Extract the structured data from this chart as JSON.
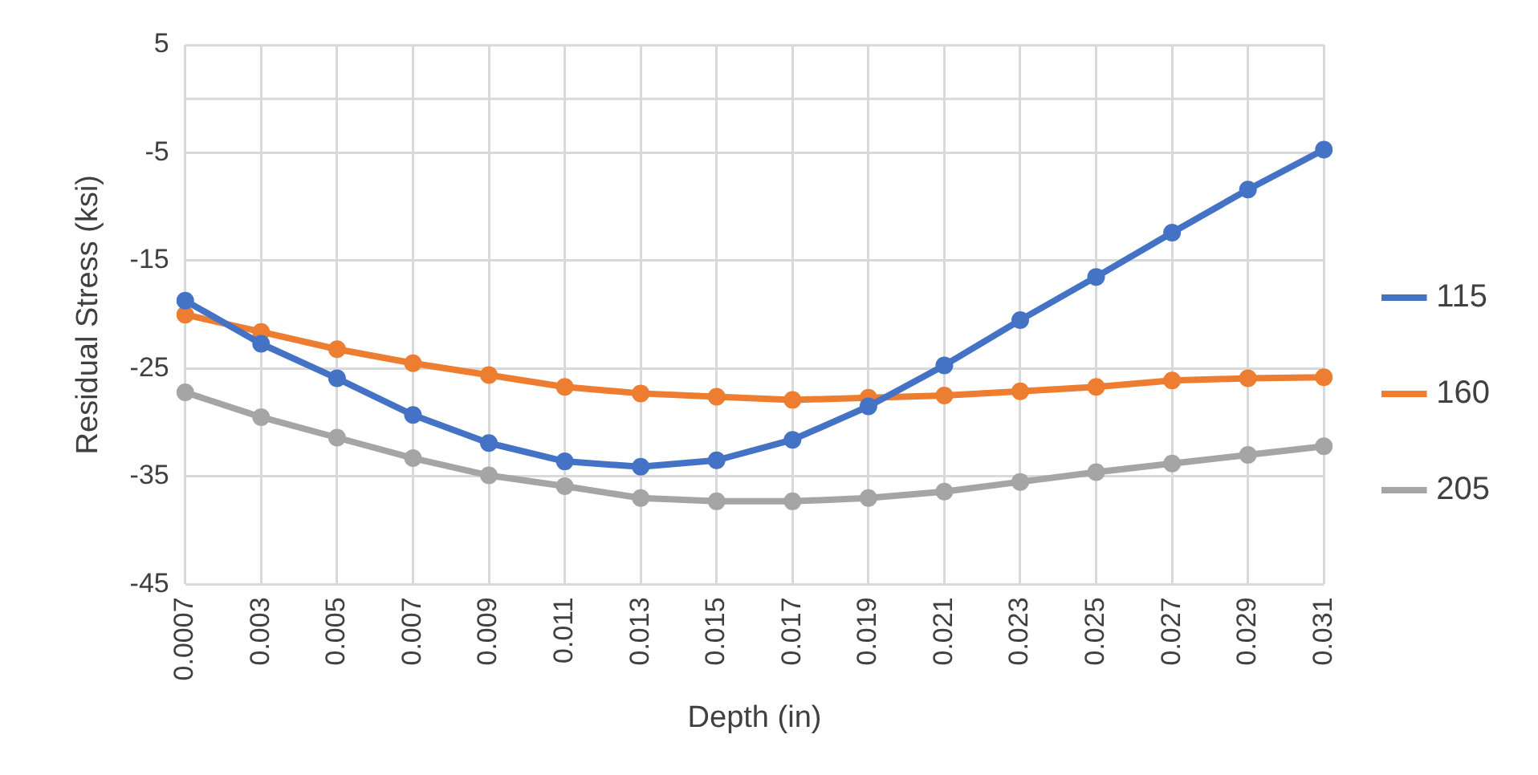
{
  "chart_data": {
    "type": "line",
    "xlabel": "Depth (in)",
    "ylabel": "Residual Stress (ksi)",
    "categories": [
      "0.0007",
      "0.003",
      "0.005",
      "0.007",
      "0.009",
      "0.011",
      "0.013",
      "0.015",
      "0.017",
      "0.019",
      "0.021",
      "0.023",
      "0.025",
      "0.027",
      "0.029",
      "0.031"
    ],
    "series": [
      {
        "name": "115",
        "color": "#4472c4",
        "values": [
          -18.7,
          -22.7,
          -25.9,
          -29.3,
          -31.9,
          -33.6,
          -34.1,
          -33.5,
          -31.6,
          -28.5,
          -24.7,
          -20.5,
          -16.5,
          -12.4,
          -8.4,
          -4.7
        ]
      },
      {
        "name": "160",
        "color": "#ed7d31",
        "values": [
          -20.0,
          -21.6,
          -23.2,
          -24.5,
          -25.6,
          -26.7,
          -27.3,
          -27.6,
          -27.9,
          -27.7,
          -27.5,
          -27.1,
          -26.7,
          -26.1,
          -25.9,
          -25.8
        ]
      },
      {
        "name": "205",
        "color": "#a5a5a5",
        "values": [
          -27.2,
          -29.5,
          -31.4,
          -33.3,
          -34.9,
          -35.9,
          -37.0,
          -37.3,
          -37.3,
          -37.0,
          -36.4,
          -35.5,
          -34.6,
          -33.8,
          -33.0,
          -32.2
        ]
      }
    ],
    "ylim": [
      -45,
      5
    ],
    "yticks": [
      -45,
      -35,
      -25,
      -15,
      -5,
      5
    ],
    "ref_lines": [
      {
        "axis": "y",
        "value": 0,
        "color": "#d9d9d9"
      }
    ],
    "grid": true,
    "legend": "right",
    "marker": "circle",
    "line_style": "solid"
  }
}
